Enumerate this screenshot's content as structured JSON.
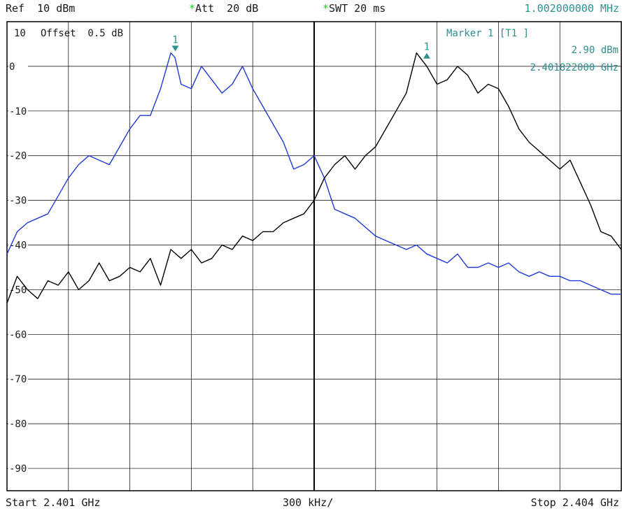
{
  "header": {
    "ref": "Ref  10 dBm",
    "att_flag": "*",
    "att": "Att  20 dB",
    "swt_flag": "*",
    "swt": "SWT 20 ms",
    "center_readout": "1.002000000 MHz"
  },
  "grid_top_label": "10",
  "offset": "Offset  0.5 dB",
  "marker_box": {
    "title": "Marker 1 [T1 ]",
    "level": "2.90 dBm",
    "freq": "2.401822000 GHz"
  },
  "footer": {
    "start": "Start 2.401 GHz",
    "span": "300 kHz/",
    "stop": "Stop 2.404 GHz"
  },
  "colors": {
    "trace1": "#1f3ad6",
    "trace2": "#000000",
    "marker": "#2f8f8f",
    "grid": "#000000"
  },
  "chart_data": {
    "type": "line",
    "xlim": [
      2.401,
      2.404
    ],
    "ylim": [
      -95,
      10
    ],
    "y_ticks": [
      0,
      -10,
      -20,
      -30,
      -40,
      -50,
      -60,
      -70,
      -80,
      -90
    ],
    "y_tick_labels": [
      "0",
      "-10",
      "-20",
      "-30",
      "-40",
      "-50",
      "-60",
      "-70",
      "-80",
      "-90"
    ],
    "series": [
      {
        "color": "#1f3ad6",
        "x": [
          2.401,
          2.40105,
          2.4011,
          2.40115,
          2.4012,
          2.40125,
          2.4013,
          2.40135,
          2.4014,
          2.40145,
          2.4015,
          2.40155,
          2.4016,
          2.40165,
          2.4017,
          2.40175,
          2.4018,
          2.40182,
          2.40185,
          2.4019,
          2.40195,
          2.402,
          2.40205,
          2.4021,
          2.40215,
          2.4022,
          2.40225,
          2.4023,
          2.40235,
          2.4024,
          2.40245,
          2.4025,
          2.40255,
          2.4026,
          2.40265,
          2.4027,
          2.40275,
          2.4028,
          2.40285,
          2.4029,
          2.40295,
          2.403,
          2.40305,
          2.4031,
          2.40315,
          2.4032,
          2.40325,
          2.4033,
          2.40335,
          2.4034,
          2.40345,
          2.4035,
          2.40355,
          2.4036,
          2.40365,
          2.4037,
          2.40375,
          2.4038,
          2.40385,
          2.4039,
          2.40395,
          2.404
        ],
        "y": [
          -42,
          -37,
          -35,
          -34,
          -33,
          -29,
          -25,
          -22,
          -20,
          -21,
          -22,
          -18,
          -14,
          -11,
          -11,
          -5,
          3,
          2,
          -4,
          -5,
          0,
          -3,
          -6,
          -4,
          0,
          -5,
          -9,
          -13,
          -17,
          -23,
          -22,
          -20,
          -25,
          -32,
          -33,
          -34,
          -36,
          -38,
          -39,
          -40,
          -41,
          -40,
          -42,
          -43,
          -44,
          -42,
          -45,
          -45,
          -44,
          -45,
          -44,
          -46,
          -47,
          -46,
          -47,
          -47,
          -48,
          -48,
          -49,
          -50,
          -51,
          -51
        ]
      },
      {
        "color": "#000000",
        "x": [
          2.401,
          2.40105,
          2.4011,
          2.40115,
          2.4012,
          2.40125,
          2.4013,
          2.40135,
          2.4014,
          2.40145,
          2.4015,
          2.40155,
          2.4016,
          2.40165,
          2.4017,
          2.40175,
          2.4018,
          2.40185,
          2.4019,
          2.40195,
          2.402,
          2.40205,
          2.4021,
          2.40215,
          2.4022,
          2.40225,
          2.4023,
          2.40235,
          2.4024,
          2.40245,
          2.4025,
          2.40255,
          2.4026,
          2.40265,
          2.4027,
          2.40275,
          2.4028,
          2.40285,
          2.4029,
          2.40295,
          2.403,
          2.40305,
          2.4031,
          2.40315,
          2.4032,
          2.40325,
          2.4033,
          2.40335,
          2.4034,
          2.40345,
          2.4035,
          2.40355,
          2.4036,
          2.40365,
          2.4037,
          2.40375,
          2.4038,
          2.40385,
          2.4039,
          2.40395,
          2.404
        ],
        "y": [
          -53,
          -47,
          -50,
          -52,
          -48,
          -49,
          -46,
          -50,
          -48,
          -44,
          -48,
          -47,
          -45,
          -46,
          -43,
          -49,
          -41,
          -43,
          -41,
          -44,
          -43,
          -40,
          -41,
          -38,
          -39,
          -37,
          -37,
          -35,
          -34,
          -33,
          -30,
          -25,
          -22,
          -20,
          -23,
          -20,
          -18,
          -14,
          -10,
          -6,
          3,
          0,
          -4,
          -3,
          0,
          -2,
          -6,
          -4,
          -5,
          -9,
          -14,
          -17,
          -19,
          -21,
          -23,
          -21,
          -26,
          -31,
          -37,
          -38,
          -41
        ]
      }
    ],
    "marker": {
      "label": "1",
      "x": 2.401822,
      "y": 2.9
    }
  }
}
